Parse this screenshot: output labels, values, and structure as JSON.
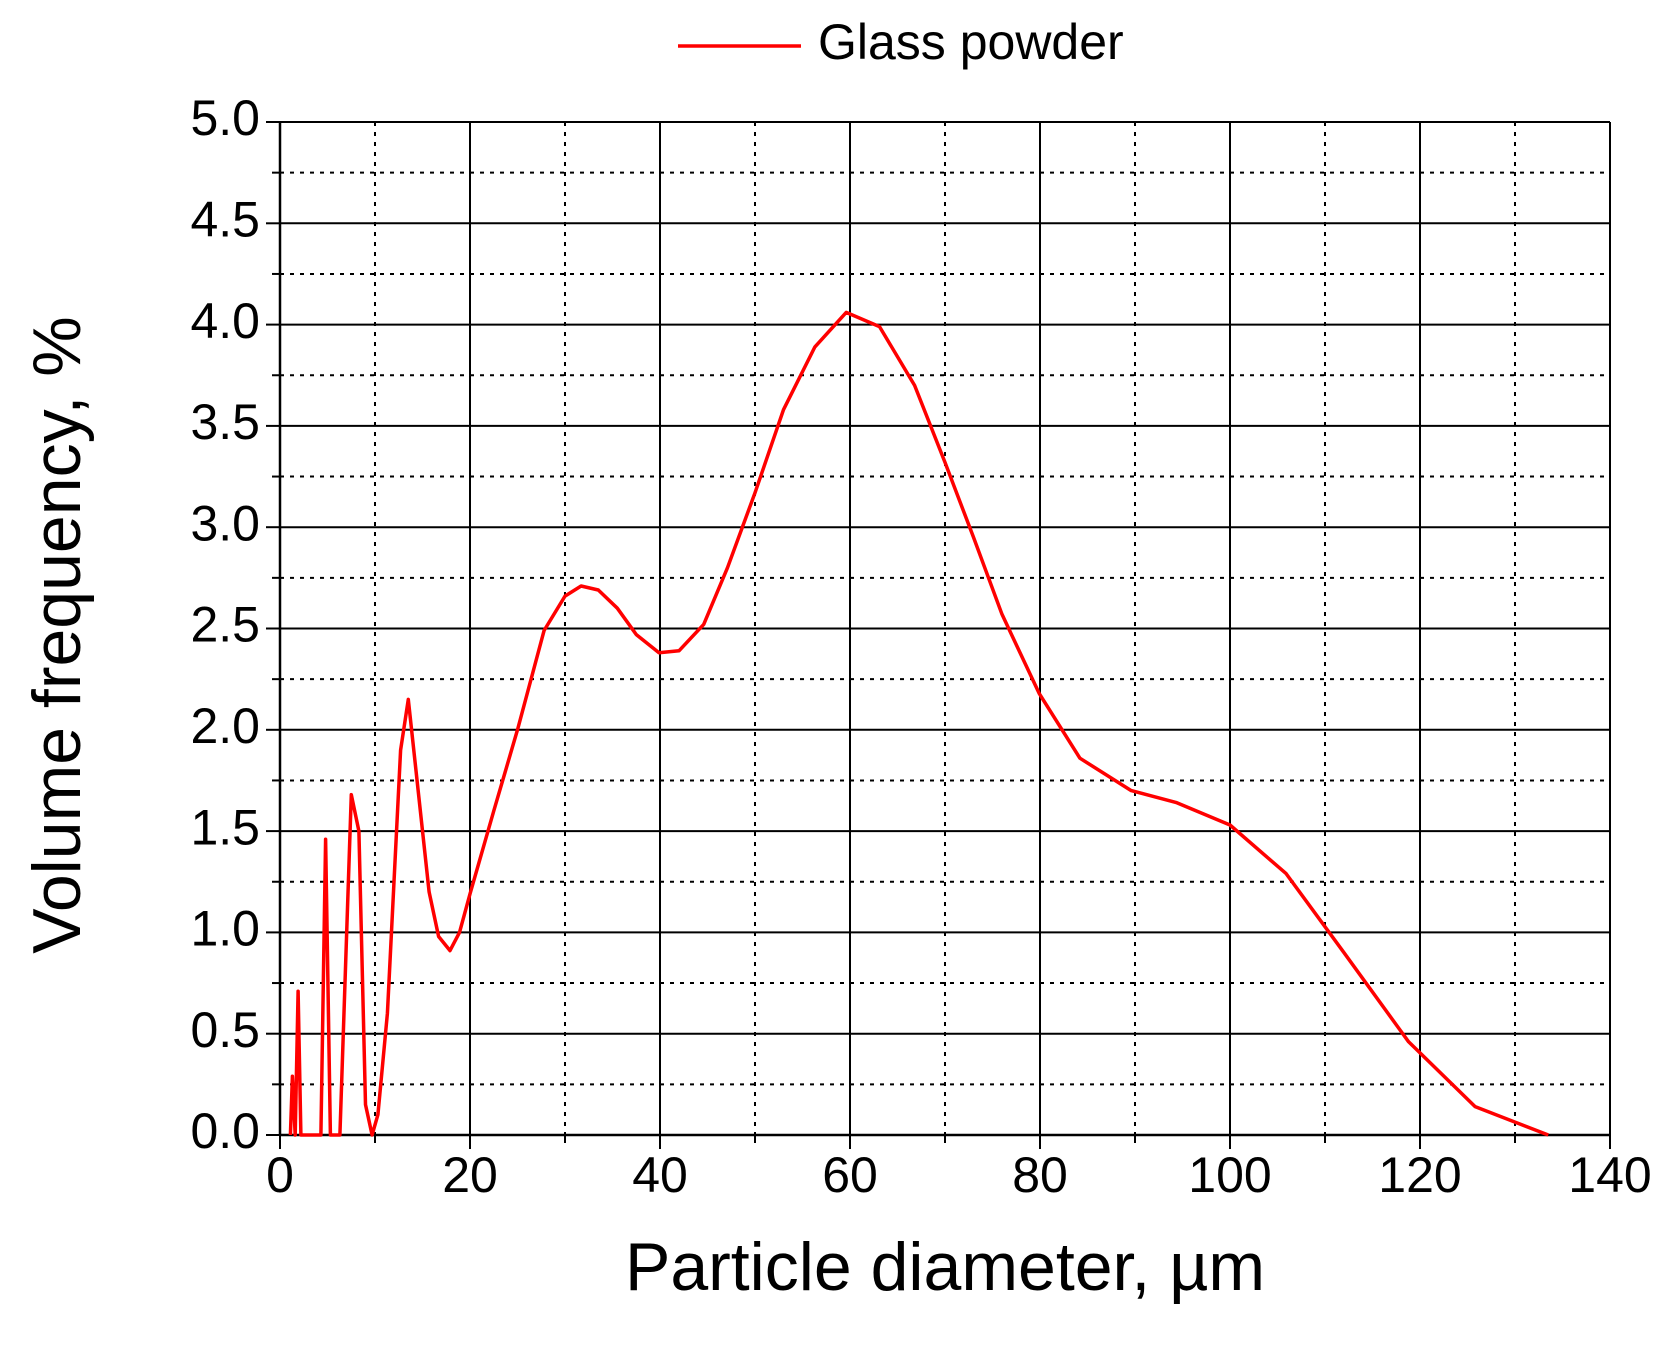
{
  "chart_data": {
    "type": "line",
    "xlabel": "Particle diameter, µm",
    "ylabel": "Volume frequency, %",
    "x": [
      1.1,
      1.3,
      1.6,
      1.9,
      2.2,
      4.3,
      4.8,
      5.3,
      6.3,
      7.5,
      8.3,
      9.0,
      9.7,
      10.3,
      11.3,
      12.7,
      13.5,
      15.7,
      16.7,
      17.9,
      18.9,
      20,
      22.5,
      25,
      27.8,
      30,
      31.7,
      33.5,
      35.5,
      37.5,
      39.9,
      42,
      44.6,
      47.1,
      50,
      53,
      56.3,
      59.6,
      63.1,
      66.8,
      70,
      73,
      76,
      79.9,
      84.2,
      89.6,
      94.4,
      100,
      105.9,
      112,
      118.8,
      125.8,
      133.5
    ],
    "series": [
      {
        "name": "Glass powder",
        "color": "#ff0000",
        "values": [
          0,
          0.29,
          0,
          0.71,
          0,
          0,
          1.46,
          0,
          0,
          1.68,
          1.5,
          0.15,
          0,
          0.1,
          0.6,
          1.9,
          2.15,
          1.2,
          0.98,
          0.91,
          1.0,
          1.19,
          1.6,
          2.0,
          2.49,
          2.66,
          2.71,
          2.69,
          2.6,
          2.47,
          2.38,
          2.39,
          2.52,
          2.8,
          3.17,
          3.58,
          3.89,
          4.06,
          3.99,
          3.7,
          3.32,
          2.95,
          2.57,
          2.18,
          1.86,
          1.7,
          1.64,
          1.53,
          1.29,
          0.9,
          0.46,
          0.14,
          0
        ]
      }
    ],
    "xlim": [
      0,
      140
    ],
    "ylim": [
      0,
      5
    ],
    "xticks": [
      0,
      20,
      40,
      60,
      80,
      100,
      120,
      140
    ],
    "yticks": [
      {
        "value": 0,
        "label": "0.0"
      },
      0.5,
      {
        "value": 1,
        "label": "1.0"
      },
      1.5,
      {
        "value": 2,
        "label": "2.0"
      },
      2.5,
      {
        "value": 3,
        "label": "3.0"
      },
      3.5,
      {
        "value": 4,
        "label": "4.0"
      },
      4.5,
      {
        "value": 5,
        "label": "5.0"
      }
    ],
    "xminorticks": [
      10,
      30,
      50,
      70,
      90,
      110,
      130
    ],
    "yminorticks": [
      0.25,
      0.75,
      1.25,
      1.75,
      2.25,
      2.75,
      3.25,
      3.75,
      4.25,
      4.75
    ],
    "grid": true,
    "legend": "top"
  }
}
